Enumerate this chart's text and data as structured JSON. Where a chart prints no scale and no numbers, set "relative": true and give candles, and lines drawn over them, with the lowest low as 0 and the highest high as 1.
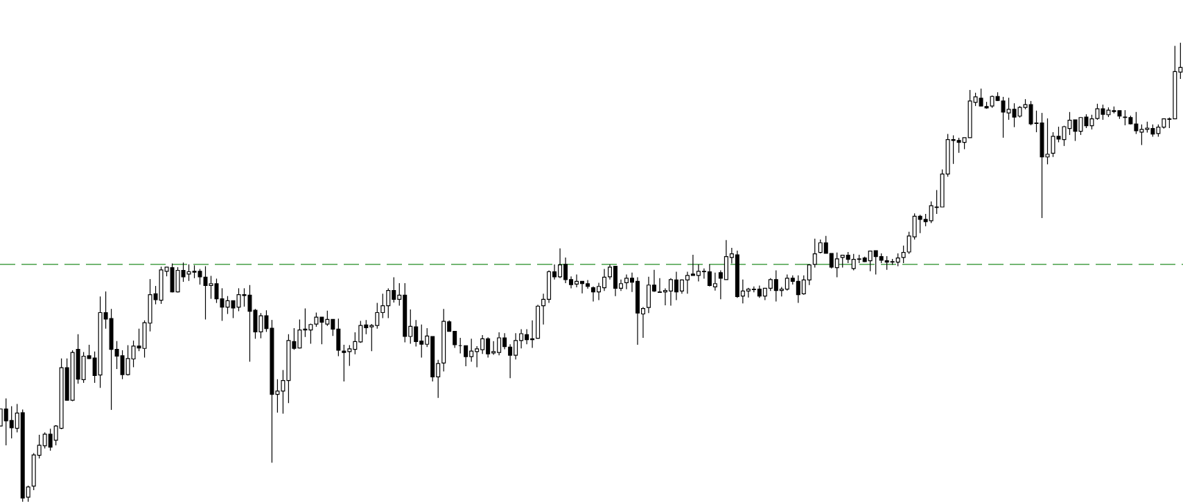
{
  "chart_data": {
    "type": "candlestick",
    "relative": true,
    "color": "#000000",
    "categories": [
      null,
      null,
      null,
      null,
      null,
      null,
      null,
      null,
      null,
      null,
      null,
      null,
      null,
      null,
      null,
      null,
      null,
      null,
      null,
      null,
      null,
      null,
      null,
      null,
      null,
      null,
      null,
      null,
      null,
      null,
      null,
      null,
      null,
      null,
      null,
      null,
      null,
      null,
      null,
      null,
      null,
      null,
      null,
      null,
      null,
      null,
      null,
      null,
      null,
      null,
      null,
      null,
      null,
      null,
      null,
      null,
      null,
      null,
      null,
      null,
      null,
      null,
      null,
      null,
      null,
      null,
      null,
      null,
      null,
      null,
      null,
      null,
      null,
      null,
      null,
      null,
      null,
      null,
      null,
      null,
      null,
      null,
      null,
      null,
      null,
      null,
      null,
      null,
      null,
      null,
      null,
      null,
      null,
      null,
      null,
      null,
      null,
      null,
      null,
      null,
      null,
      null,
      null,
      null,
      null,
      null,
      null,
      null,
      null,
      null,
      null,
      null,
      null,
      null,
      null,
      null,
      null,
      null,
      null,
      null,
      null,
      null,
      null,
      null,
      null,
      null,
      null,
      null,
      null,
      null,
      null,
      null,
      null,
      null,
      null,
      null,
      null,
      null,
      null,
      null,
      null,
      null,
      null,
      null,
      null,
      null,
      null,
      null,
      null,
      null,
      null,
      null,
      null,
      null,
      null,
      null,
      null,
      null,
      null,
      null,
      null,
      null,
      null,
      null,
      null,
      null,
      null,
      null,
      null,
      null,
      null,
      null,
      null,
      null,
      null,
      null,
      null,
      null,
      null,
      null,
      null,
      null,
      null,
      null,
      null,
      null,
      null,
      null,
      null,
      null,
      null,
      null,
      null,
      null,
      null,
      null,
      null,
      null,
      null,
      null,
      null,
      null,
      null,
      null,
      null,
      null,
      null,
      null,
      null,
      null,
      null,
      null,
      null,
      null
    ],
    "ohlc": [
      [
        0.165,
        0.202,
        0.165,
        0.202
      ],
      [
        0.202,
        0.225,
        0.123,
        0.176
      ],
      [
        0.177,
        0.208,
        0.138,
        0.161
      ],
      [
        0.16,
        0.213,
        0.151,
        0.193
      ],
      [
        0.194,
        0.201,
        0,
        0.008
      ],
      [
        0.01,
        0.035,
        0,
        0.032
      ],
      [
        0.034,
        0.106,
        0.025,
        0.102
      ],
      [
        0.101,
        0.146,
        0.094,
        0.123
      ],
      [
        0.122,
        0.151,
        0.116,
        0.147
      ],
      [
        0.147,
        0.159,
        0.111,
        0.119
      ],
      [
        0.134,
        0.167,
        0.123,
        0.165
      ],
      [
        0.16,
        0.312,
        0.158,
        0.292
      ],
      [
        0.292,
        0.312,
        0.221,
        0.221
      ],
      [
        0.221,
        0.33,
        0.219,
        0.325
      ],
      [
        0.332,
        0.365,
        0.257,
        0.267
      ],
      [
        0.266,
        0.326,
        0.259,
        0.317
      ],
      [
        0.318,
        0.342,
        0.311,
        0.312
      ],
      [
        0.313,
        0.327,
        0.259,
        0.275
      ],
      [
        0.276,
        0.447,
        0.248,
        0.412
      ],
      [
        0.412,
        0.458,
        0.377,
        0.398
      ],
      [
        0.399,
        0.42,
        0.2,
        0.332
      ],
      [
        0.332,
        0.35,
        0.289,
        0.317
      ],
      [
        0.318,
        0.33,
        0.267,
        0.277
      ],
      [
        0.277,
        0.341,
        0.275,
        0.312
      ],
      [
        0.311,
        0.351,
        0.293,
        0.339
      ],
      [
        0.339,
        0.377,
        0.328,
        0.335
      ],
      [
        0.334,
        0.395,
        0.314,
        0.39
      ],
      [
        0.389,
        0.485,
        0.371,
        0.451
      ],
      [
        0.453,
        0.47,
        0.43,
        0.44
      ],
      [
        0.439,
        0.512,
        0.431,
        0.505
      ],
      [
        0.502,
        0.511,
        0.491,
        0.511
      ],
      [
        0.51,
        0.519,
        0.456,
        0.457
      ],
      [
        0.457,
        0.511,
        0.456,
        0.504
      ],
      [
        0.504,
        0.521,
        0.479,
        0.49
      ],
      [
        0.496,
        0.517,
        0.481,
        0.501
      ],
      [
        0.502,
        0.515,
        0.487,
        0.5
      ],
      [
        0.502,
        0.507,
        0.473,
        0.49
      ],
      [
        0.489,
        0.513,
        0.397,
        0.471
      ],
      [
        0.471,
        0.492,
        0.442,
        0.475
      ],
      [
        0.475,
        0.486,
        0.433,
        0.442
      ],
      [
        0.442,
        0.465,
        0.394,
        0.424
      ],
      [
        0.424,
        0.448,
        0.409,
        0.438
      ],
      [
        0.438,
        0.438,
        0.4,
        0.422
      ],
      [
        0.424,
        0.465,
        0.415,
        0.451
      ],
      [
        0.451,
        0.465,
        0.425,
        0.449
      ],
      [
        0.45,
        0.472,
        0.305,
        0.415
      ],
      [
        0.417,
        0.42,
        0.355,
        0.37
      ],
      [
        0.37,
        0.411,
        0.356,
        0.405
      ],
      [
        0.405,
        0.417,
        0.37,
        0.377
      ],
      [
        0.378,
        0.396,
        0.085,
        0.234
      ],
      [
        0.234,
        0.267,
        0.194,
        0.241
      ],
      [
        0.241,
        0.287,
        0.192,
        0.264
      ],
      [
        0.264,
        0.365,
        0.215,
        0.351
      ],
      [
        0.349,
        0.378,
        0.331,
        0.334
      ],
      [
        0.335,
        0.397,
        0.334,
        0.374
      ],
      [
        0.374,
        0.421,
        0.359,
        0.376
      ],
      [
        0.374,
        0.388,
        0.344,
        0.386
      ],
      [
        0.387,
        0.412,
        0.381,
        0.402
      ],
      [
        0.402,
        0.402,
        0.343,
        0.391
      ],
      [
        0.387,
        0.416,
        0.383,
        0.397
      ],
      [
        0.397,
        0.397,
        0.361,
        0.376
      ],
      [
        0.376,
        0.399,
        0.317,
        0.33
      ],
      [
        0.328,
        0.342,
        0.262,
        0.325
      ],
      [
        0.327,
        0.341,
        0.296,
        0.333
      ],
      [
        0.332,
        0.369,
        0.321,
        0.349
      ],
      [
        0.348,
        0.394,
        0.346,
        0.384
      ],
      [
        0.385,
        0.396,
        0.365,
        0.379
      ],
      [
        0.381,
        0.387,
        0.328,
        0.384
      ],
      [
        0.384,
        0.433,
        0.377,
        0.412
      ],
      [
        0.412,
        0.453,
        0.4,
        0.427
      ],
      [
        0.427,
        0.465,
        0.4,
        0.46
      ],
      [
        0.46,
        0.489,
        0.434,
        0.441
      ],
      [
        0.441,
        0.476,
        0.427,
        0.45
      ],
      [
        0.45,
        0.476,
        0.347,
        0.36
      ],
      [
        0.36,
        0.419,
        0.344,
        0.382
      ],
      [
        0.381,
        0.396,
        0.338,
        0.349
      ],
      [
        0.35,
        0.386,
        0.314,
        0.343
      ],
      [
        0.343,
        0.378,
        0.337,
        0.361
      ],
      [
        0.36,
        0.36,
        0.262,
        0.272
      ],
      [
        0.272,
        0.309,
        0.226,
        0.301
      ],
      [
        0.302,
        0.42,
        0.284,
        0.393
      ],
      [
        0.392,
        0.395,
        0.371,
        0.371
      ],
      [
        0.371,
        0.372,
        0.335,
        0.342
      ],
      [
        0.34,
        0.357,
        0.323,
        0.34
      ],
      [
        0.34,
        0.34,
        0.295,
        0.316
      ],
      [
        0.316,
        0.355,
        0.305,
        0.328
      ],
      [
        0.327,
        0.339,
        0.293,
        0.333
      ],
      [
        0.331,
        0.363,
        0.322,
        0.355
      ],
      [
        0.355,
        0.358,
        0.314,
        0.322
      ],
      [
        0.324,
        0.35,
        0.32,
        0.327
      ],
      [
        0.325,
        0.369,
        0.319,
        0.357
      ],
      [
        0.357,
        0.367,
        0.332,
        0.338
      ],
      [
        0.337,
        0.343,
        0.269,
        0.319
      ],
      [
        0.319,
        0.367,
        0.31,
        0.351
      ],
      [
        0.351,
        0.376,
        0.334,
        0.366
      ],
      [
        0.364,
        0.376,
        0.343,
        0.353
      ],
      [
        0.355,
        0.395,
        0.335,
        0.353
      ],
      [
        0.356,
        0.429,
        0.355,
        0.426
      ],
      [
        0.427,
        0.453,
        0.386,
        0.441
      ],
      [
        0.441,
        0.504,
        0.433,
        0.501
      ],
      [
        0.501,
        0.517,
        0.484,
        0.49
      ],
      [
        0.49,
        0.552,
        0.487,
        0.516
      ],
      [
        0.517,
        0.532,
        0.476,
        0.484
      ],
      [
        0.484,
        0.491,
        0.465,
        0.473
      ],
      [
        0.474,
        0.495,
        0.467,
        0.48
      ],
      [
        0.48,
        0.48,
        0.454,
        0.475
      ],
      [
        0.475,
        0.483,
        0.464,
        0.469
      ],
      [
        0.466,
        0.469,
        0.436,
        0.457
      ],
      [
        0.457,
        0.477,
        0.439,
        0.469
      ],
      [
        0.466,
        0.507,
        0.459,
        0.489
      ],
      [
        0.49,
        0.517,
        0.484,
        0.511
      ],
      [
        0.513,
        0.513,
        0.448,
        0.465
      ],
      [
        0.465,
        0.484,
        0.459,
        0.475
      ],
      [
        0.477,
        0.495,
        0.463,
        0.487
      ],
      [
        0.487,
        0.499,
        0.457,
        0.478
      ],
      [
        0.48,
        0.489,
        0.342,
        0.411
      ],
      [
        0.409,
        0.424,
        0.357,
        0.421
      ],
      [
        0.423,
        0.49,
        0.411,
        0.472
      ],
      [
        0.472,
        0.505,
        0.457,
        0.459
      ],
      [
        0.457,
        0.487,
        0.456,
        0.456
      ],
      [
        0.457,
        0.465,
        0.428,
        0.46
      ],
      [
        0.459,
        0.487,
        0.427,
        0.484
      ],
      [
        0.483,
        0.501,
        0.439,
        0.457
      ],
      [
        0.459,
        0.484,
        0.453,
        0.483
      ],
      [
        0.483,
        0.501,
        0.453,
        0.493
      ],
      [
        0.496,
        0.538,
        0.493,
        0.493
      ],
      [
        0.493,
        0.517,
        0.48,
        0.502
      ],
      [
        0.502,
        0.508,
        0.486,
        0.501
      ],
      [
        0.501,
        0.517,
        0.469,
        0.471
      ],
      [
        0.468,
        0.499,
        0.46,
        0.475
      ],
      [
        0.499,
        0.504,
        0.441,
        0.487
      ],
      [
        0.484,
        0.57,
        0.484,
        0.534
      ],
      [
        0.532,
        0.553,
        0.519,
        0.54
      ],
      [
        0.538,
        0.547,
        0.444,
        0.447
      ],
      [
        0.448,
        0.484,
        0.432,
        0.459
      ],
      [
        0.459,
        0.466,
        0.445,
        0.463
      ],
      [
        0.463,
        0.469,
        0.456,
        0.462
      ],
      [
        0.463,
        0.471,
        0.444,
        0.448
      ],
      [
        0.448,
        0.465,
        0.439,
        0.465
      ],
      [
        0.465,
        0.487,
        0.459,
        0.484
      ],
      [
        0.484,
        0.504,
        0.436,
        0.46
      ],
      [
        0.46,
        0.468,
        0.447,
        0.463
      ],
      [
        0.463,
        0.495,
        0.46,
        0.487
      ],
      [
        0.487,
        0.493,
        0.473,
        0.48
      ],
      [
        0.48,
        0.493,
        0.433,
        0.451
      ],
      [
        0.453,
        0.493,
        0.451,
        0.483
      ],
      [
        0.483,
        0.516,
        0.472,
        0.516
      ],
      [
        0.517,
        0.573,
        0.51,
        0.54
      ],
      [
        0.543,
        0.571,
        0.541,
        0.564
      ],
      [
        0.564,
        0.579,
        0.541,
        0.541
      ],
      [
        0.541,
        0.541,
        0.508,
        0.511
      ],
      [
        0.51,
        0.543,
        0.489,
        0.529
      ],
      [
        0.532,
        0.537,
        0.51,
        0.537
      ],
      [
        0.537,
        0.544,
        0.52,
        0.528
      ],
      [
        0.508,
        0.54,
        0.504,
        0.528
      ],
      [
        0.528,
        0.538,
        0.52,
        0.529
      ],
      [
        0.531,
        0.534,
        0.522,
        0.523
      ],
      [
        0.525,
        0.547,
        0.502,
        0.546
      ],
      [
        0.547,
        0.547,
        0.495,
        0.534
      ],
      [
        0.534,
        0.541,
        0.52,
        0.526
      ],
      [
        0.525,
        0.535,
        0.505,
        0.522
      ],
      [
        0.523,
        0.529,
        0.516,
        0.522
      ],
      [
        0.522,
        0.541,
        0.513,
        0.531
      ],
      [
        0.532,
        0.558,
        0.52,
        0.543
      ],
      [
        0.544,
        0.588,
        0.54,
        0.579
      ],
      [
        0.577,
        0.628,
        0.571,
        0.622
      ],
      [
        0.622,
        0.625,
        0.585,
        0.615
      ],
      [
        0.615,
        0.627,
        0.6,
        0.61
      ],
      [
        0.612,
        0.654,
        0.607,
        0.645
      ],
      [
        0.642,
        0.679,
        0.627,
        0.641
      ],
      [
        0.642,
        0.724,
        0.642,
        0.714
      ],
      [
        0.714,
        0.801,
        0.708,
        0.789
      ],
      [
        0.789,
        0.798,
        0.736,
        0.787
      ],
      [
        0.787,
        0.793,
        0.76,
        0.783
      ],
      [
        0.783,
        0.793,
        0.768,
        0.793
      ],
      [
        0.793,
        0.897,
        0.793,
        0.873
      ],
      [
        0.87,
        0.891,
        0.862,
        0.882
      ],
      [
        0.879,
        0.9,
        0.862,
        0.862
      ],
      [
        0.861,
        0.871,
        0.856,
        0.858
      ],
      [
        0.862,
        0.885,
        0.858,
        0.883
      ],
      [
        0.883,
        0.892,
        0.873,
        0.874
      ],
      [
        0.873,
        0.882,
        0.793,
        0.849
      ],
      [
        0.847,
        0.88,
        0.832,
        0.855
      ],
      [
        0.855,
        0.868,
        0.816,
        0.838
      ],
      [
        0.84,
        0.862,
        0.837,
        0.859
      ],
      [
        0.859,
        0.877,
        0.855,
        0.865
      ],
      [
        0.865,
        0.873,
        0.82,
        0.823
      ],
      [
        0.825,
        0.852,
        0.805,
        0.824
      ],
      [
        0.825,
        0.847,
        0.618,
        0.751
      ],
      [
        0.751,
        0.835,
        0.735,
        0.757
      ],
      [
        0.759,
        0.805,
        0.751,
        0.796
      ],
      [
        0.796,
        0.817,
        0.783,
        0.79
      ],
      [
        0.789,
        0.819,
        0.775,
        0.817
      ],
      [
        0.813,
        0.849,
        0.799,
        0.831
      ],
      [
        0.832,
        0.832,
        0.786,
        0.807
      ],
      [
        0.807,
        0.838,
        0.799,
        0.837
      ],
      [
        0.838,
        0.844,
        0.814,
        0.819
      ],
      [
        0.819,
        0.843,
        0.811,
        0.834
      ],
      [
        0.835,
        0.867,
        0.832,
        0.856
      ],
      [
        0.856,
        0.865,
        0.832,
        0.844
      ],
      [
        0.843,
        0.859,
        0.838,
        0.853
      ],
      [
        0.852,
        0.861,
        0.846,
        0.85
      ],
      [
        0.852,
        0.852,
        0.834,
        0.84
      ],
      [
        0.838,
        0.853,
        0.82,
        0.837
      ],
      [
        0.837,
        0.841,
        0.822,
        0.823
      ],
      [
        0.823,
        0.849,
        0.801,
        0.808
      ],
      [
        0.805,
        0.822,
        0.777,
        0.811
      ],
      [
        0.811,
        0.828,
        0.804,
        0.814
      ],
      [
        0.813,
        0.822,
        0.795,
        0.801
      ],
      [
        0.802,
        0.822,
        0.795,
        0.816
      ],
      [
        0.816,
        0.835,
        0.813,
        0.834
      ],
      [
        0.834,
        0.837,
        0.814,
        0.833
      ],
      [
        0.834,
        0.993,
        0.834,
        0.937
      ],
      [
        0.936,
        1,
        0.921,
        0.946
      ]
    ],
    "ref_lines": [
      {
        "axis": "y",
        "value": 0.517,
        "color": "#228b22",
        "line_style": "dashed"
      }
    ]
  }
}
